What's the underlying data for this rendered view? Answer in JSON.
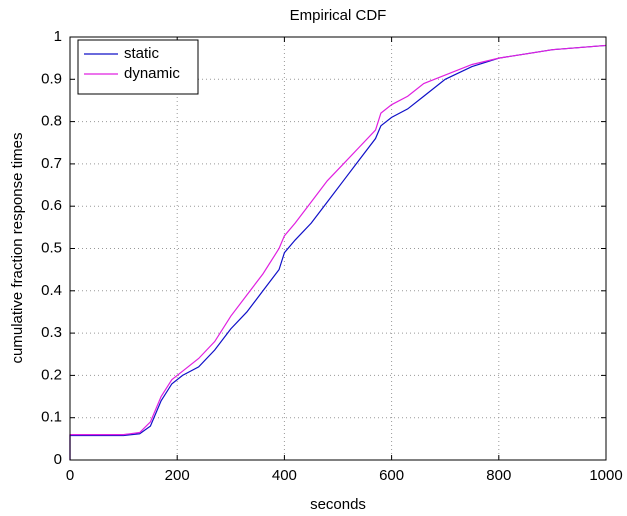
{
  "chart_data": {
    "type": "line",
    "title": "Empirical CDF",
    "x_label": "seconds",
    "y_label": "cumulative fraction response times",
    "x": [
      0,
      0,
      100,
      130,
      150,
      170,
      190,
      210,
      240,
      270,
      300,
      330,
      360,
      390,
      400,
      420,
      450,
      480,
      510,
      540,
      570,
      580,
      600,
      630,
      660,
      700,
      750,
      800,
      850,
      900,
      950,
      1000
    ],
    "series": [
      {
        "name": "static",
        "color": "#1010c8",
        "values": [
          0,
          0.058,
          0.058,
          0.062,
          0.08,
          0.14,
          0.18,
          0.2,
          0.22,
          0.26,
          0.31,
          0.35,
          0.4,
          0.45,
          0.49,
          0.52,
          0.56,
          0.61,
          0.66,
          0.71,
          0.76,
          0.79,
          0.81,
          0.83,
          0.86,
          0.9,
          0.93,
          0.95,
          0.96,
          0.97,
          0.975,
          0.98
        ]
      },
      {
        "name": "dynamic",
        "color": "#e020e0",
        "values": [
          0,
          0.06,
          0.06,
          0.065,
          0.09,
          0.15,
          0.19,
          0.21,
          0.24,
          0.28,
          0.34,
          0.39,
          0.44,
          0.5,
          0.53,
          0.56,
          0.61,
          0.66,
          0.7,
          0.74,
          0.78,
          0.82,
          0.84,
          0.86,
          0.89,
          0.91,
          0.935,
          0.95,
          0.96,
          0.97,
          0.975,
          0.98
        ]
      }
    ],
    "xlim": [
      0,
      1000
    ],
    "xticks": [
      0,
      200,
      400,
      600,
      800,
      1000
    ],
    "ylim": [
      0,
      1
    ],
    "yticks": [
      0,
      0.1,
      0.2,
      0.3,
      0.4,
      0.5,
      0.6,
      0.7,
      0.8,
      0.9,
      1
    ],
    "grid": true,
    "legend_location": "northwest"
  }
}
